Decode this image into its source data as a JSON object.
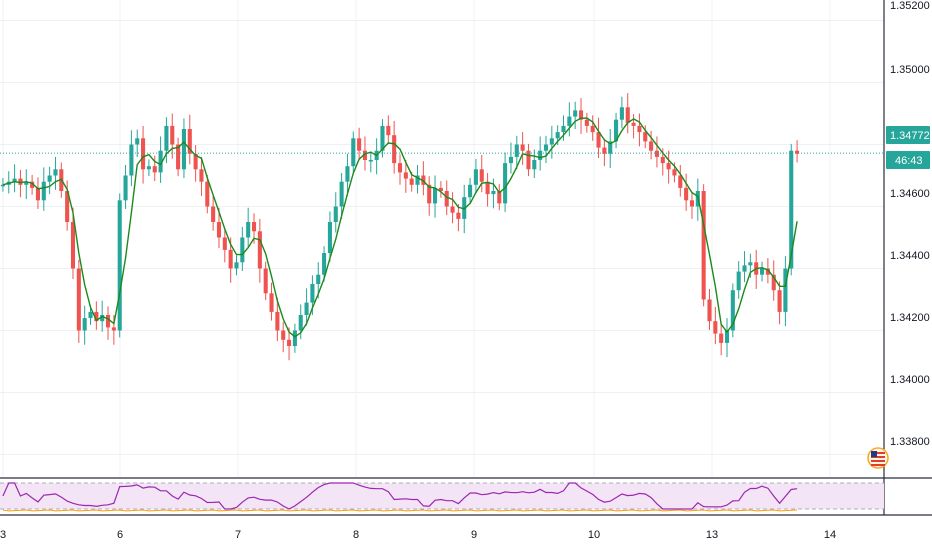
{
  "colors": {
    "up": "#26a69a",
    "down": "#ef5350",
    "ma": "#1b8a1b",
    "rsi": "#9c27b0",
    "rsi_band": "#f3e5f5",
    "grid": "#eef0f3",
    "axis_text": "#131722",
    "price_line": "#26a69a"
  },
  "price_axis": {
    "ticks": [
      "1.35200",
      "1.35000",
      "1.34800",
      "1.34600",
      "1.34400",
      "1.34200",
      "1.34000",
      "1.33800"
    ],
    "last_price_label": "1.34772",
    "countdown_label": "46:43"
  },
  "time_axis": {
    "labels": [
      "3",
      "6",
      "7",
      "8",
      "9",
      "10",
      "13",
      "14"
    ]
  },
  "indicators": {
    "flag_icon": "us-flag-icon"
  },
  "chart_data": {
    "type": "candlestick",
    "title": "",
    "xlabel": "",
    "ylabel": "",
    "ylim": [
      1.3375,
      1.3525
    ],
    "last_price": 1.34772,
    "x": [
      "3",
      "3",
      "3",
      "3",
      "3",
      "3",
      "3",
      "3",
      "3",
      "3",
      "3",
      "3",
      "3",
      "3",
      "3",
      "3",
      "3",
      "3",
      "3",
      "3",
      "6",
      "6",
      "6",
      "6",
      "6",
      "6",
      "6",
      "6",
      "6",
      "6",
      "6",
      "6",
      "6",
      "6",
      "6",
      "6",
      "6",
      "6",
      "6",
      "6",
      "7",
      "7",
      "7",
      "7",
      "7",
      "7",
      "7",
      "7",
      "7",
      "7",
      "7",
      "7",
      "7",
      "7",
      "7",
      "7",
      "7",
      "7",
      "7",
      "7",
      "8",
      "8",
      "8",
      "8",
      "8",
      "8",
      "8",
      "8",
      "8",
      "8",
      "8",
      "8",
      "8",
      "8",
      "8",
      "8",
      "8",
      "8",
      "8",
      "8",
      "9",
      "9",
      "9",
      "9",
      "9",
      "9",
      "9",
      "9",
      "9",
      "9",
      "9",
      "9",
      "9",
      "9",
      "9",
      "9",
      "9",
      "9",
      "9",
      "9",
      "10",
      "10",
      "10",
      "10",
      "10",
      "10",
      "10",
      "10",
      "10",
      "10",
      "10",
      "10",
      "10",
      "10",
      "10",
      "10",
      "10",
      "10",
      "10",
      "10",
      "13",
      "13",
      "13",
      "13",
      "13",
      "13",
      "13",
      "13",
      "13",
      "13",
      "13",
      "13",
      "13",
      "13",
      "13",
      "13",
      "13"
    ],
    "close": [
      1.3467,
      1.3468,
      1.3469,
      1.3467,
      1.3468,
      1.3466,
      1.3462,
      1.3468,
      1.347,
      1.3472,
      1.3465,
      1.3455,
      1.344,
      1.342,
      1.3424,
      1.3426,
      1.3423,
      1.3425,
      1.3421,
      1.342,
      1.3462,
      1.347,
      1.348,
      1.3482,
      1.3472,
      1.3473,
      1.3471,
      1.3478,
      1.3486,
      1.348,
      1.3472,
      1.3485,
      1.3477,
      1.3472,
      1.3468,
      1.346,
      1.3455,
      1.345,
      1.3446,
      1.344,
      1.3442,
      1.345,
      1.3455,
      1.3452,
      1.344,
      1.3432,
      1.3426,
      1.342,
      1.3417,
      1.3415,
      1.342,
      1.3425,
      1.3429,
      1.3435,
      1.3438,
      1.3445,
      1.3455,
      1.346,
      1.3468,
      1.3473,
      1.3482,
      1.3478,
      1.3475,
      1.3475,
      1.3478,
      1.3486,
      1.3483,
      1.3474,
      1.3471,
      1.3469,
      1.3467,
      1.347,
      1.3467,
      1.3461,
      1.3466,
      1.3465,
      1.346,
      1.3458,
      1.3456,
      1.3463,
      1.3467,
      1.3472,
      1.3468,
      1.3464,
      1.3465,
      1.3461,
      1.3474,
      1.3476,
      1.348,
      1.3478,
      1.3472,
      1.3475,
      1.3478,
      1.348,
      1.3482,
      1.3484,
      1.3486,
      1.3489,
      1.3491,
      1.3488,
      1.3486,
      1.3484,
      1.3479,
      1.3477,
      1.3481,
      1.3488,
      1.3492,
      1.3487,
      1.3486,
      1.3484,
      1.3481,
      1.3478,
      1.3476,
      1.3474,
      1.3472,
      1.347,
      1.3466,
      1.3462,
      1.346,
      1.3465,
      1.343,
      1.3423,
      1.3419,
      1.3416,
      1.342,
      1.3433,
      1.3439,
      1.3441,
      1.3442,
      1.3438,
      1.344,
      1.3438,
      1.3433,
      1.3426,
      1.344,
      1.3478,
      1.3477
    ]
  }
}
